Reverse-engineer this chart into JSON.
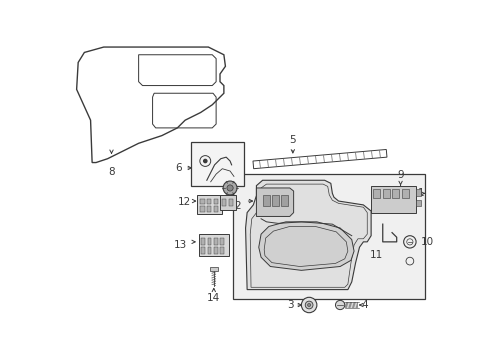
{
  "bg_color": "#ffffff",
  "line_color": "#3a3a3a",
  "fig_width": 4.89,
  "fig_height": 3.6,
  "dpi": 100,
  "label_fontsize": 7.5,
  "small_fontsize": 6.5
}
